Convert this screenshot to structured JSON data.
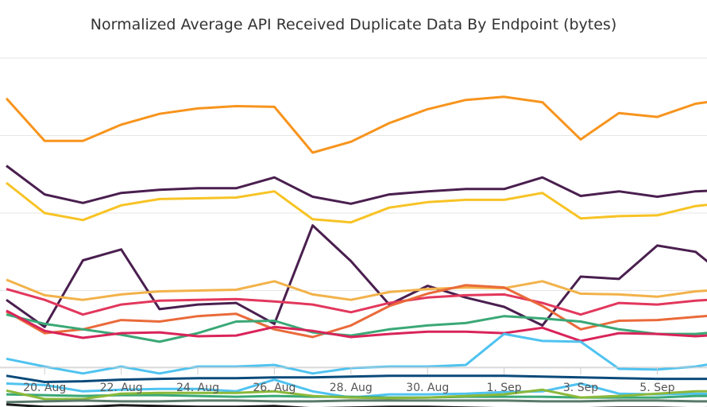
{
  "chart_data": {
    "type": "line",
    "title": "Normalized Average API Received Duplicate Data By Endpoint (bytes)",
    "xlabel": "",
    "ylabel": "",
    "x": [
      "Aug 19",
      "Aug 20",
      "Aug 21",
      "Aug 22",
      "Aug 23",
      "Aug 24",
      "Aug 25",
      "Aug 26",
      "Aug 27",
      "Aug 28",
      "Aug 29",
      "Aug 30",
      "Aug 31",
      "Sep 1",
      "Sep 2",
      "Sep 3",
      "Sep 4",
      "Sep 5",
      "Sep 6",
      "Sep 7"
    ],
    "x_tick_labels": [
      "20. Aug",
      "22. Aug",
      "24. Aug",
      "26. Aug",
      "28. Aug",
      "30. Aug",
      "1. Sep",
      "3. Sep",
      "5. Sep"
    ],
    "ylim": [
      0,
      4
    ],
    "grid": true,
    "series": [
      {
        "color": "#f7941d",
        "values": [
          3.48,
          2.93,
          2.93,
          3.14,
          3.28,
          3.35,
          3.38,
          3.37,
          2.78,
          2.92,
          3.16,
          3.34,
          3.46,
          3.5,
          3.43,
          2.95,
          3.29,
          3.24,
          3.41,
          3.48
        ]
      },
      {
        "color": "#4a1f4f",
        "values": [
          2.61,
          2.24,
          2.13,
          2.26,
          2.3,
          2.32,
          2.32,
          2.46,
          2.21,
          2.12,
          2.24,
          2.28,
          2.31,
          2.31,
          2.46,
          2.22,
          2.28,
          2.21,
          2.28,
          2.3
        ]
      },
      {
        "color": "#f7c325",
        "values": [
          2.39,
          2.0,
          1.91,
          2.1,
          2.18,
          2.19,
          2.2,
          2.28,
          1.92,
          1.88,
          2.07,
          2.14,
          2.17,
          2.17,
          2.26,
          1.93,
          1.96,
          1.97,
          2.09,
          2.14
        ]
      },
      {
        "color": "#4a1f4f",
        "values": [
          0.88,
          0.53,
          1.39,
          1.53,
          0.76,
          0.82,
          0.84,
          0.57,
          1.84,
          1.38,
          0.82,
          1.06,
          0.91,
          0.79,
          0.55,
          1.18,
          1.15,
          1.58,
          1.5,
          1.1
        ]
      },
      {
        "color": "#f2b24a",
        "values": [
          1.14,
          0.94,
          0.88,
          0.95,
          0.99,
          1.0,
          1.01,
          1.12,
          0.95,
          0.88,
          0.98,
          1.02,
          1.04,
          1.03,
          1.12,
          0.96,
          0.95,
          0.92,
          0.99,
          1.02
        ]
      },
      {
        "color": "#e2375c",
        "values": [
          1.02,
          0.88,
          0.69,
          0.82,
          0.87,
          0.88,
          0.89,
          0.86,
          0.82,
          0.72,
          0.84,
          0.91,
          0.94,
          0.95,
          0.84,
          0.69,
          0.84,
          0.82,
          0.87,
          0.9
        ]
      },
      {
        "color": "#ea6a3a",
        "values": [
          0.73,
          0.45,
          0.5,
          0.62,
          0.6,
          0.67,
          0.7,
          0.5,
          0.4,
          0.55,
          0.8,
          0.96,
          1.07,
          1.04,
          0.8,
          0.5,
          0.61,
          0.62,
          0.66,
          0.7
        ]
      },
      {
        "color": "#3aa876",
        "values": [
          0.69,
          0.57,
          0.5,
          0.43,
          0.34,
          0.45,
          0.6,
          0.61,
          0.46,
          0.42,
          0.5,
          0.55,
          0.58,
          0.67,
          0.64,
          0.6,
          0.5,
          0.44,
          0.44,
          0.48
        ]
      },
      {
        "color": "#d9245a",
        "values": [
          0.74,
          0.48,
          0.39,
          0.45,
          0.46,
          0.41,
          0.42,
          0.53,
          0.48,
          0.4,
          0.44,
          0.47,
          0.47,
          0.45,
          0.52,
          0.35,
          0.45,
          0.44,
          0.41,
          0.44
        ]
      },
      {
        "color": "#4fc3f0",
        "values": [
          0.12,
          0.02,
          -0.07,
          0.02,
          -0.07,
          0.02,
          0.02,
          0.04,
          -0.07,
          0.0,
          0.02,
          0.02,
          0.04,
          0.44,
          0.35,
          0.34,
          -0.01,
          -0.02,
          0.02,
          0.1
        ]
      },
      {
        "color": "#0a4a7a",
        "values": [
          -0.1,
          -0.18,
          -0.17,
          -0.15,
          -0.14,
          -0.13,
          -0.13,
          -0.12,
          -0.12,
          -0.11,
          -0.1,
          -0.1,
          -0.1,
          -0.1,
          -0.11,
          -0.12,
          -0.13,
          -0.14,
          -0.14,
          -0.14
        ]
      },
      {
        "color": "#4fc3f0",
        "values": [
          -0.2,
          -0.22,
          -0.3,
          -0.28,
          -0.27,
          -0.27,
          -0.3,
          -0.15,
          -0.3,
          -0.38,
          -0.34,
          -0.34,
          -0.33,
          -0.31,
          -0.3,
          -0.2,
          -0.33,
          -0.34,
          -0.33,
          -0.34
        ]
      },
      {
        "color": "#3aa876",
        "values": [
          -0.34,
          -0.35,
          -0.36,
          -0.35,
          -0.35,
          -0.36,
          -0.37,
          -0.36,
          -0.37,
          -0.37,
          -0.38,
          -0.38,
          -0.37,
          -0.37,
          -0.37,
          -0.38,
          -0.38,
          -0.38,
          -0.36,
          -0.36
        ]
      },
      {
        "color": "#8bb83a",
        "values": [
          -0.29,
          -0.4,
          -0.4,
          -0.33,
          -0.32,
          -0.32,
          -0.32,
          -0.3,
          -0.36,
          -0.38,
          -0.39,
          -0.38,
          -0.36,
          -0.34,
          -0.28,
          -0.38,
          -0.36,
          -0.33,
          -0.3,
          -0.3
        ]
      },
      {
        "color": "#5a7a6a",
        "values": [
          -0.44,
          -0.43,
          -0.42,
          -0.43,
          -0.43,
          -0.42,
          -0.42,
          -0.43,
          -0.43,
          -0.42,
          -0.42,
          -0.42,
          -0.42,
          -0.42,
          -0.43,
          -0.43,
          -0.42,
          -0.42,
          -0.43,
          -0.43
        ]
      },
      {
        "color": "#1a1a1a",
        "values": [
          -0.47,
          -0.5,
          -0.5,
          -0.48,
          -0.49,
          -0.5,
          -0.5,
          -0.49,
          -0.52,
          -0.51,
          -0.5,
          -0.5,
          -0.51,
          -0.52,
          -0.53,
          -0.52,
          -0.51,
          -0.51,
          -0.52,
          -0.51
        ]
      }
    ]
  }
}
